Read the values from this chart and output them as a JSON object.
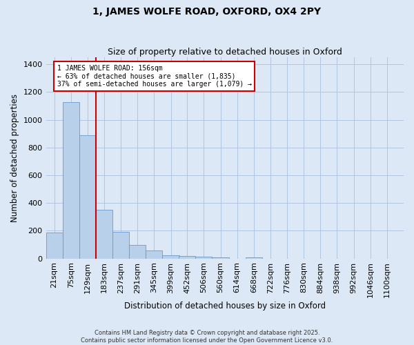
{
  "title": "1, JAMES WOLFE ROAD, OXFORD, OX4 2PY",
  "subtitle": "Size of property relative to detached houses in Oxford",
  "xlabel": "Distribution of detached houses by size in Oxford",
  "ylabel": "Number of detached properties",
  "bar_color": "#b8d0ea",
  "bar_edge_color": "#6699cc",
  "background_color": "#dce8f5",
  "fig_background_color": "#dce8f5",
  "grid_color": "#b0c4de",
  "categories": [
    "21sqm",
    "75sqm",
    "129sqm",
    "183sqm",
    "237sqm",
    "291sqm",
    "345sqm",
    "399sqm",
    "452sqm",
    "506sqm",
    "560sqm",
    "614sqm",
    "668sqm",
    "722sqm",
    "776sqm",
    "830sqm",
    "884sqm",
    "938sqm",
    "992sqm",
    "1046sqm",
    "1100sqm"
  ],
  "bin_edges": [
    21,
    75,
    129,
    183,
    237,
    291,
    345,
    399,
    452,
    506,
    560,
    614,
    668,
    722,
    776,
    830,
    884,
    938,
    992,
    1046,
    1100
  ],
  "values": [
    190,
    1130,
    890,
    350,
    195,
    100,
    60,
    25,
    20,
    15,
    10,
    0,
    8,
    0,
    0,
    0,
    0,
    0,
    0,
    0,
    0
  ],
  "ylim": [
    0,
    1450
  ],
  "yticks": [
    0,
    200,
    400,
    600,
    800,
    1000,
    1200,
    1400
  ],
  "property_size": 156,
  "annotation_line1": "1 JAMES WOLFE ROAD: 156sqm",
  "annotation_line2": "← 63% of detached houses are smaller (1,835)",
  "annotation_line3": "37% of semi-detached houses are larger (1,079) →",
  "vline_color": "#cc0000",
  "annotation_box_edgecolor": "#cc0000",
  "annotation_box_facecolor": "#ffffff",
  "footer1": "Contains HM Land Registry data © Crown copyright and database right 2025.",
  "footer2": "Contains public sector information licensed under the Open Government Licence v3.0."
}
